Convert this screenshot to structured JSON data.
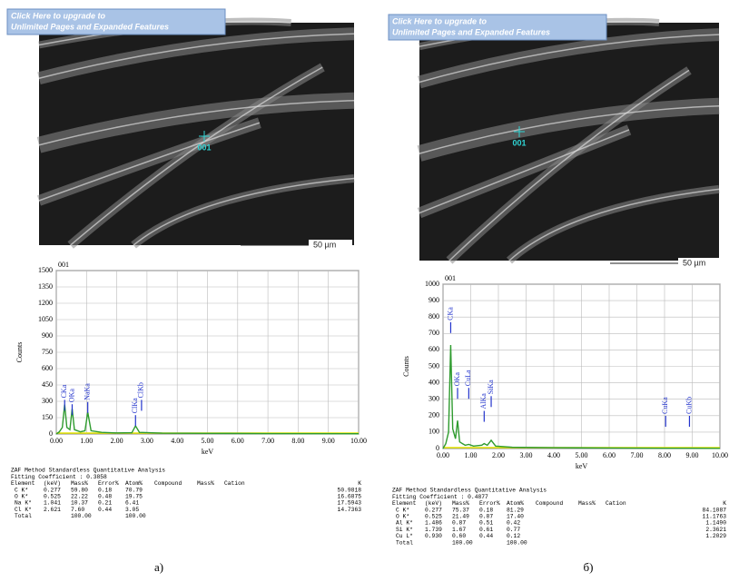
{
  "panels": [
    {
      "banner": [
        "Click Here to upgrade to",
        "Unlimited Pages and Expanded Features"
      ],
      "image": {
        "point_label": "001",
        "scale_label": "50 µm"
      },
      "table": {
        "title": "ZAF Method Standardless Quantitative Analysis",
        "fitting": "Fitting Coefficient : 0.3858",
        "columns": [
          "Element",
          "(keV)",
          "Mass%",
          "Error%",
          "Atom%",
          "Compound",
          "Mass%",
          "Cation",
          "K"
        ],
        "rows": [
          {
            "element": "C K*",
            "kev": "0.277",
            "mass": "59.80",
            "error": "0.18",
            "atom": "70.79",
            "k": "50.9818"
          },
          {
            "element": "O K*",
            "kev": "0.525",
            "mass": "22.22",
            "error": "0.48",
            "atom": "19.75",
            "k": "16.6875"
          },
          {
            "element": "Na K*",
            "kev": "1.041",
            "mass": "10.37",
            "error": "0.21",
            "atom": "6.41",
            "k": "17.5943"
          },
          {
            "element": "Cl K*",
            "kev": "2.621",
            "mass": "7.60",
            "error": "0.44",
            "atom": "3.05",
            "k": "14.7363"
          },
          {
            "element": "Total",
            "mass": "100.00",
            "atom": "100.00"
          }
        ]
      },
      "caption": "а)"
    },
    {
      "banner": [
        "Click Here to upgrade to",
        "Unlimited Pages and Expanded Features"
      ],
      "image": {
        "point_label": "001",
        "scale_label": "50 µm"
      },
      "table": {
        "title": "ZAF Method Standardless Quantitative Analysis",
        "fitting": "Fitting Coefficient : 0.4877",
        "columns": [
          "Element",
          "(keV)",
          "Mass%",
          "Error%",
          "Atom%",
          "Compound",
          "Mass%",
          "Cation",
          "K"
        ],
        "rows": [
          {
            "element": "C K*",
            "kev": "0.277",
            "mass": "75.37",
            "error": "0.18",
            "atom": "81.29",
            "k": "84.1087"
          },
          {
            "element": "O K*",
            "kev": "0.525",
            "mass": "21.49",
            "error": "0.87",
            "atom": "17.40",
            "k": "11.1763"
          },
          {
            "element": "Al K*",
            "kev": "1.486",
            "mass": "0.87",
            "error": "0.51",
            "atom": "0.42",
            "k": "1.1490"
          },
          {
            "element": "Si K*",
            "kev": "1.739",
            "mass": "1.67",
            "error": "0.61",
            "atom": "0.77",
            "k": "2.3621"
          },
          {
            "element": "Cu L*",
            "kev": "0.930",
            "mass": "0.60",
            "error": "0.44",
            "atom": "0.12",
            "k": "1.2029"
          },
          {
            "element": "Total",
            "mass": "100.00",
            "atom": "100.00"
          }
        ]
      },
      "caption": "б)"
    }
  ],
  "chart_data": [
    {
      "type": "line",
      "title": "001",
      "x_label": "keV",
      "y_label": "Counts",
      "grid": true,
      "x": [
        0,
        0.1,
        0.2,
        0.277,
        0.35,
        0.45,
        0.525,
        0.6,
        0.8,
        0.95,
        1.041,
        1.15,
        1.5,
        2.0,
        2.5,
        2.621,
        2.75,
        3.5,
        5,
        7,
        10
      ],
      "series": [
        {
          "color": "#2e9b2e",
          "values": [
            0,
            20,
            60,
            270,
            60,
            40,
            230,
            40,
            20,
            30,
            200,
            30,
            15,
            10,
            12,
            75,
            15,
            8,
            6,
            4,
            2
          ]
        }
      ],
      "xlim": [
        0,
        10
      ],
      "xticks": [
        {
          "value": 0,
          "label": "0.00"
        },
        {
          "value": 1,
          "label": "1.00"
        },
        {
          "value": 2,
          "label": "2.00"
        },
        {
          "value": 3,
          "label": "3.00"
        },
        {
          "value": 4,
          "label": "4.00"
        },
        {
          "value": 5,
          "label": "5.00"
        },
        {
          "value": 6,
          "label": "6.00"
        },
        {
          "value": 7,
          "label": "7.00"
        },
        {
          "value": 8,
          "label": "8.00"
        },
        {
          "value": 9,
          "label": "9.00"
        },
        {
          "value": 10,
          "label": "10.00"
        }
      ],
      "ylim": [
        0,
        1500
      ],
      "yticks": [
        0,
        150,
        300,
        450,
        600,
        750,
        900,
        1050,
        1200,
        1350,
        1500
      ],
      "annotations": [
        {
          "text": "CKa",
          "x": 0.277,
          "y": 330
        },
        {
          "text": "OKa",
          "x": 0.525,
          "y": 290
        },
        {
          "text": "NaKa",
          "x": 1.041,
          "y": 310
        },
        {
          "text": "ClKa",
          "x": 2.621,
          "y": 190
        },
        {
          "text": "ClKb",
          "x": 2.82,
          "y": 330
        }
      ]
    },
    {
      "type": "line",
      "title": "001",
      "x_label": "keV",
      "y_label": "Counts",
      "grid": true,
      "x": [
        0,
        0.1,
        0.2,
        0.277,
        0.35,
        0.45,
        0.525,
        0.6,
        0.8,
        0.93,
        1.1,
        1.4,
        1.486,
        1.6,
        1.739,
        1.9,
        2.5,
        4,
        6,
        8,
        10
      ],
      "series": [
        {
          "color": "#2e9b2e",
          "values": [
            0,
            30,
            100,
            630,
            120,
            60,
            170,
            40,
            20,
            25,
            15,
            20,
            30,
            20,
            50,
            15,
            8,
            5,
            3,
            2,
            1
          ]
        }
      ],
      "xlim": [
        0,
        10
      ],
      "xticks": [
        {
          "value": 0,
          "label": "0.00"
        },
        {
          "value": 1,
          "label": "1.00"
        },
        {
          "value": 2,
          "label": "2.00"
        },
        {
          "value": 3,
          "label": "3.00"
        },
        {
          "value": 4,
          "label": "4.00"
        },
        {
          "value": 5,
          "label": "5.00"
        },
        {
          "value": 6,
          "label": "6.00"
        },
        {
          "value": 7,
          "label": "7.00"
        },
        {
          "value": 8,
          "label": "8.00"
        },
        {
          "value": 9,
          "label": "9.00"
        },
        {
          "value": 10,
          "label": "10.00"
        }
      ],
      "ylim": [
        0,
        1000
      ],
      "yticks": [
        0,
        100,
        200,
        300,
        400,
        500,
        600,
        700,
        800,
        900,
        1000
      ],
      "annotations": [
        {
          "text": "CKa",
          "x": 0.277,
          "y": 780
        },
        {
          "text": "OKa",
          "x": 0.525,
          "y": 380
        },
        {
          "text": "CuLa",
          "x": 0.93,
          "y": 380
        },
        {
          "text": "AlKa",
          "x": 1.486,
          "y": 240
        },
        {
          "text": "SiKa",
          "x": 1.739,
          "y": 330
        },
        {
          "text": "CuKa",
          "x": 8.04,
          "y": 210
        },
        {
          "text": "CuKb",
          "x": 8.9,
          "y": 210
        }
      ]
    }
  ]
}
